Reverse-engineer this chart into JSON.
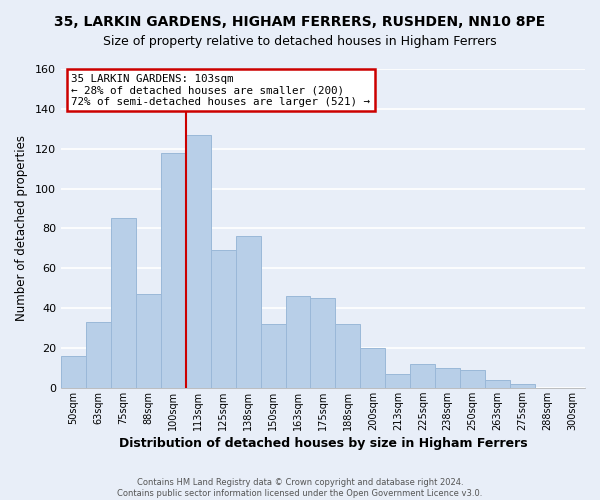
{
  "title1": "35, LARKIN GARDENS, HIGHAM FERRERS, RUSHDEN, NN10 8PE",
  "title2": "Size of property relative to detached houses in Higham Ferrers",
  "xlabel": "Distribution of detached houses by size in Higham Ferrers",
  "ylabel": "Number of detached properties",
  "bar_labels": [
    "50sqm",
    "63sqm",
    "75sqm",
    "88sqm",
    "100sqm",
    "113sqm",
    "125sqm",
    "138sqm",
    "150sqm",
    "163sqm",
    "175sqm",
    "188sqm",
    "200sqm",
    "213sqm",
    "225sqm",
    "238sqm",
    "250sqm",
    "263sqm",
    "275sqm",
    "288sqm",
    "300sqm"
  ],
  "bar_values": [
    16,
    33,
    85,
    47,
    118,
    127,
    69,
    76,
    32,
    46,
    45,
    32,
    20,
    7,
    12,
    10,
    9,
    4,
    2,
    0,
    0
  ],
  "bar_color": "#b8cfe8",
  "bar_edge_color": "#9ab8d8",
  "vline_x_index": 4,
  "vline_color": "#cc0000",
  "ylim": [
    0,
    160
  ],
  "yticks": [
    0,
    20,
    40,
    60,
    80,
    100,
    120,
    140,
    160
  ],
  "annotation_title": "35 LARKIN GARDENS: 103sqm",
  "annotation_line1": "← 28% of detached houses are smaller (200)",
  "annotation_line2": "72% of semi-detached houses are larger (521) →",
  "annotation_box_color": "#ffffff",
  "annotation_box_edge": "#cc0000",
  "footer1": "Contains HM Land Registry data © Crown copyright and database right 2024.",
  "footer2": "Contains public sector information licensed under the Open Government Licence v3.0.",
  "bg_color": "#e8eef8",
  "plot_bg_color": "#e8eef8",
  "grid_color": "#ffffff",
  "title1_fontsize": 10,
  "title2_fontsize": 9
}
